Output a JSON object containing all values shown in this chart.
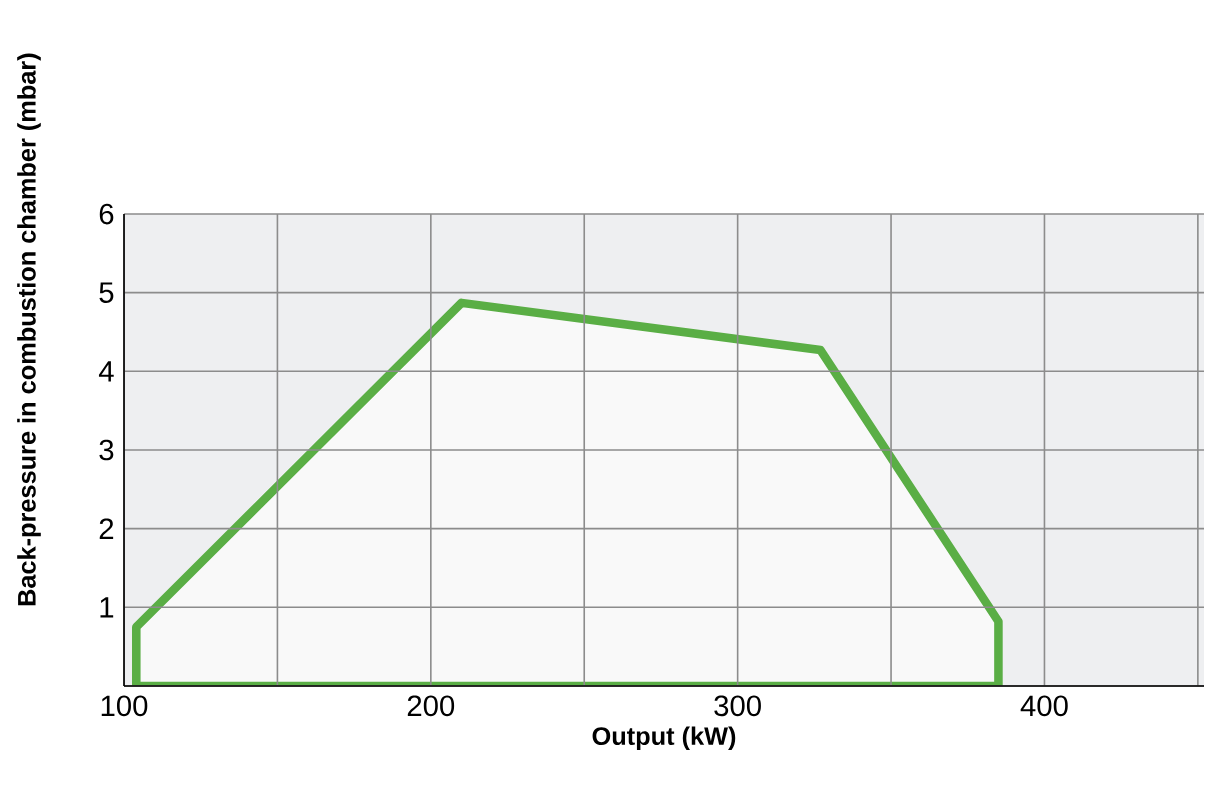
{
  "chart_data": {
    "type": "area",
    "xlabel": "Output (kW)",
    "ylabel": "Back-pressure in combustion chamber (mbar)",
    "x": [
      104,
      104,
      210,
      327,
      385,
      385,
      104
    ],
    "series": [
      {
        "color": "#5aae45",
        "values": [
          0,
          0.75,
          4.87,
          4.27,
          0.82,
          0,
          0
        ]
      }
    ],
    "xlim": [
      100,
      452
    ],
    "ylim": [
      0,
      6
    ],
    "xticks": [
      100,
      {
        "value": 150,
        "label": null
      },
      200,
      {
        "value": 250,
        "label": null
      },
      300,
      {
        "value": 350,
        "label": null
      },
      400,
      {
        "value": 450,
        "label": null
      }
    ],
    "yticks": [
      {
        "value": 0,
        "label": null
      },
      1,
      2,
      3,
      4,
      5,
      6
    ],
    "grid": true,
    "marker": "none",
    "line_style": "solid"
  }
}
